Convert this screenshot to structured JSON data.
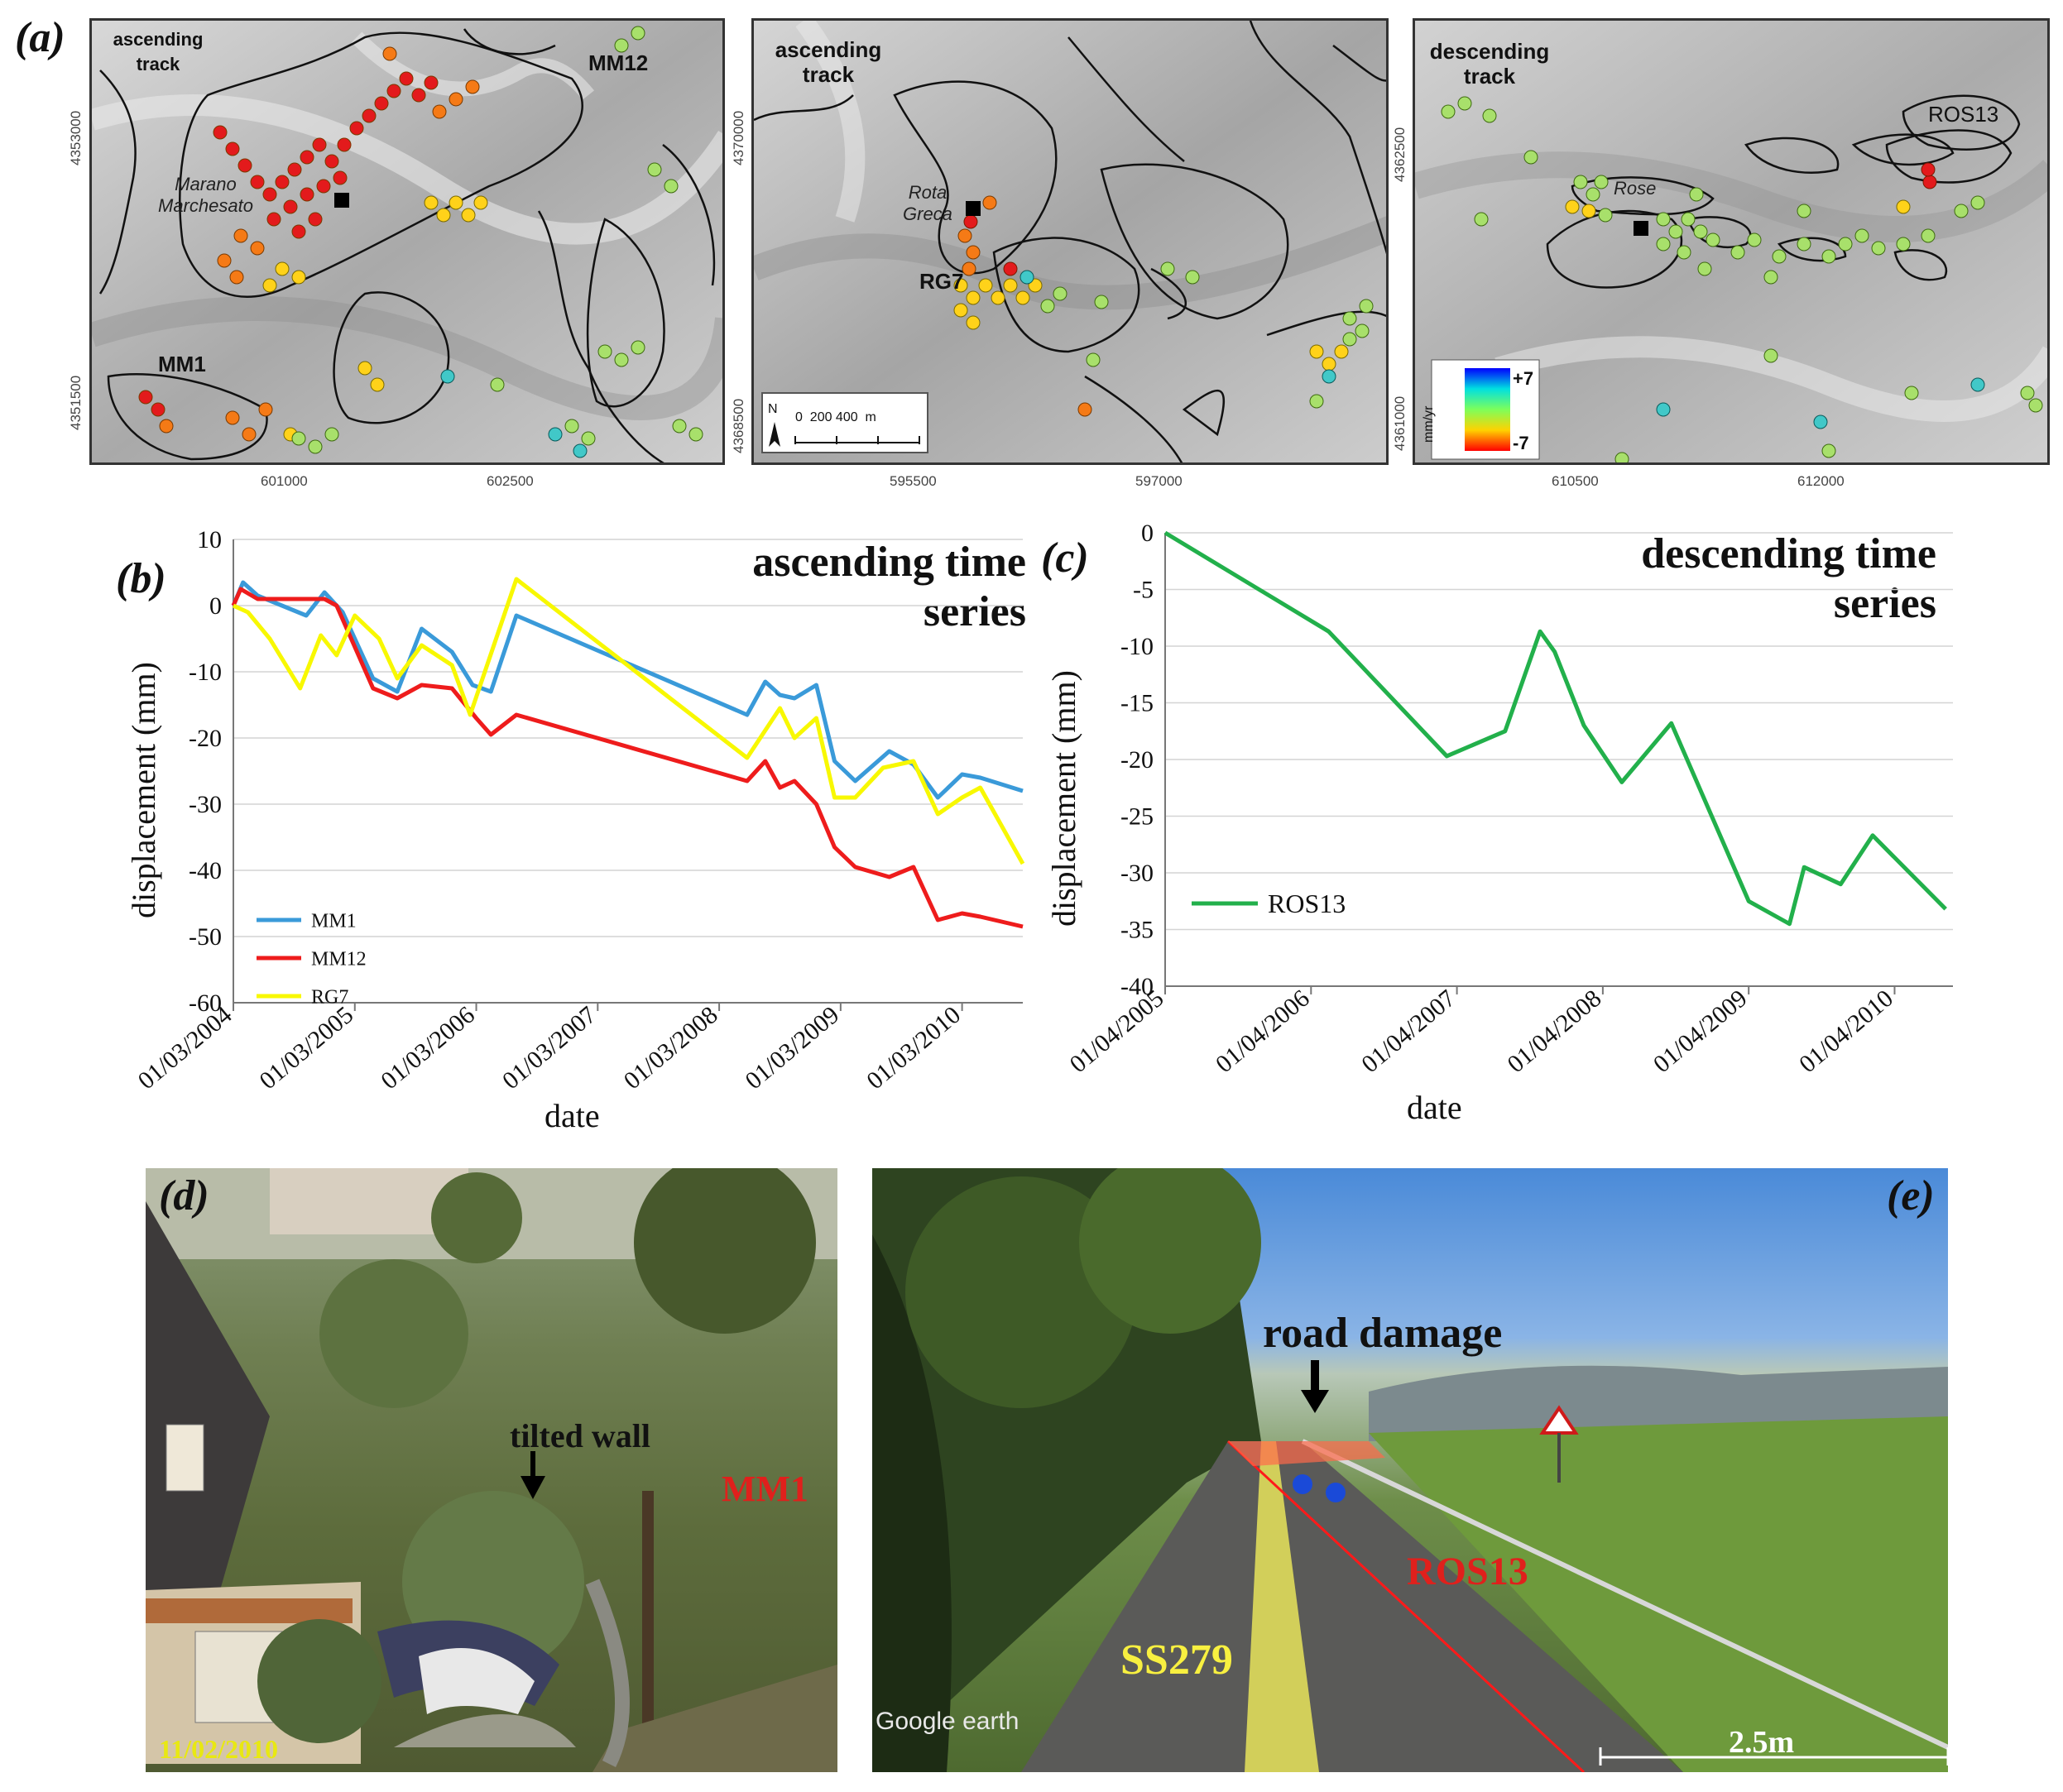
{
  "panel_labels": {
    "a": "(a)",
    "b": "(b)",
    "c": "(c)",
    "d": "(d)",
    "e": "(e)"
  },
  "map1": {
    "track": "ascending\ntrack",
    "labels": {
      "mm12": "MM12",
      "mm1": "MM1",
      "place": "Marano\nMarchesato"
    },
    "yticks": [
      "4353000",
      "4351500"
    ],
    "xticks": [
      "601000",
      "602500"
    ]
  },
  "map2": {
    "track": "ascending\ntrack",
    "labels": {
      "rg7": "RG7",
      "place": "Rota\nGreca"
    },
    "yticks": [
      "4370000",
      "4368500"
    ],
    "xticks": [
      "595500",
      "597000"
    ],
    "north": "N",
    "scale": "0  200 400  m"
  },
  "map3": {
    "track": "descending\ntrack",
    "labels": {
      "ros13": "ROS13",
      "place": "Rose"
    },
    "yticks": [
      "4362500",
      "4361000"
    ],
    "xticks": [
      "610500",
      "612000"
    ],
    "legend": {
      "max": "+7",
      "min": "-7",
      "unit": "mm/yr"
    }
  },
  "chart_data": [
    {
      "type": "line",
      "title": "ascending time\nseries",
      "xlabel": "date",
      "ylabel": "displacement (mm)",
      "ylim": [
        -60,
        10
      ],
      "yticks": [
        10,
        0,
        -10,
        -20,
        -30,
        -40,
        -50,
        -60
      ],
      "xticks": [
        "01/03/2004",
        "01/03/2005",
        "01/03/2006",
        "01/03/2007",
        "01/03/2008",
        "01/03/2009",
        "01/03/2010"
      ],
      "xlim": [
        2004.0,
        2010.5
      ],
      "grid": "horizontal",
      "legend_position": "bottom-left",
      "series": [
        {
          "name": "MM1",
          "color": "#3a9ad9",
          "x": [
            2004.0,
            2004.08,
            2004.2,
            2004.6,
            2004.75,
            2004.9,
            2005.15,
            2005.35,
            2005.55,
            2005.8,
            2005.97,
            2006.12,
            2006.33,
            2008.23,
            2008.38,
            2008.5,
            2008.62,
            2008.8,
            2008.95,
            2009.12,
            2009.4,
            2009.6,
            2009.8,
            2010.0,
            2010.15,
            2010.5
          ],
          "y": [
            0,
            3.5,
            1.5,
            -1.5,
            2,
            -1,
            -11,
            -13,
            -3.5,
            -7,
            -12,
            -13,
            -1.5,
            -16.5,
            -11.5,
            -13.5,
            -14,
            -12,
            -23.5,
            -26.5,
            -22,
            -24,
            -29,
            -25.5,
            -26,
            -28
          ]
        },
        {
          "name": "MM12",
          "color": "#ee1c1c",
          "x": [
            2004.0,
            2004.06,
            2004.2,
            2004.75,
            2004.85,
            2005.15,
            2005.35,
            2005.55,
            2005.8,
            2006.0,
            2006.12,
            2006.33,
            2008.23,
            2008.38,
            2008.5,
            2008.62,
            2008.8,
            2008.95,
            2009.12,
            2009.4,
            2009.6,
            2009.8,
            2010.0,
            2010.15,
            2010.5
          ],
          "y": [
            0,
            2.5,
            1,
            1,
            0,
            -12.5,
            -14,
            -12,
            -12.5,
            -17,
            -19.5,
            -16.5,
            -26.5,
            -23.5,
            -27.5,
            -26.5,
            -30,
            -36.5,
            -39.5,
            -41,
            -39.5,
            -47.5,
            -46.5,
            -47,
            -48.5
          ]
        },
        {
          "name": "RG7",
          "color": "#f8f800",
          "x": [
            2004.0,
            2004.12,
            2004.3,
            2004.55,
            2004.72,
            2004.85,
            2005.0,
            2005.2,
            2005.35,
            2005.55,
            2005.8,
            2005.95,
            2006.33,
            2008.23,
            2008.5,
            2008.62,
            2008.8,
            2008.95,
            2009.12,
            2009.35,
            2009.6,
            2009.8,
            2010.0,
            2010.15,
            2010.5
          ],
          "y": [
            0,
            -1,
            -5,
            -12.5,
            -4.5,
            -7.5,
            -1.5,
            -5,
            -11,
            -6,
            -9,
            -16.5,
            4,
            -23,
            -15.5,
            -20,
            -17,
            -29,
            -29,
            -24.5,
            -23.5,
            -31.5,
            -29,
            -27.5,
            -39
          ]
        }
      ]
    },
    {
      "type": "line",
      "title": "descending time\nseries",
      "xlabel": "date",
      "ylabel": "displacement (mm)",
      "ylim": [
        -40,
        0
      ],
      "yticks": [
        0,
        -5,
        -10,
        -15,
        -20,
        -25,
        -30,
        -35,
        -40
      ],
      "xticks": [
        "01/04/2005",
        "01/04/2006",
        "01/04/2007",
        "01/04/2008",
        "01/04/2009",
        "01/04/2010"
      ],
      "xlim": [
        2005.25,
        2010.65
      ],
      "grid": "horizontal",
      "legend_position": "bottom-left",
      "series": [
        {
          "name": "ROS13",
          "color": "#22b04b",
          "x": [
            2005.25,
            2006.37,
            2007.18,
            2007.58,
            2007.82,
            2007.92,
            2008.12,
            2008.38,
            2008.72,
            2009.25,
            2009.53,
            2009.63,
            2009.88,
            2010.1,
            2010.6
          ],
          "y": [
            0,
            -8.7,
            -19.7,
            -17.5,
            -8.7,
            -10.5,
            -17,
            -22,
            -16.8,
            -32.5,
            -34.5,
            -29.5,
            -31,
            -26.7,
            -33.2
          ]
        }
      ]
    }
  ],
  "photo_d": {
    "date": "11/02/2010",
    "annotation": "tilted wall",
    "site": "MM1"
  },
  "photo_e": {
    "annotation": "road damage",
    "site": "ROS13",
    "road": "SS279",
    "scale": "2.5m",
    "watermark": "Google earth"
  }
}
